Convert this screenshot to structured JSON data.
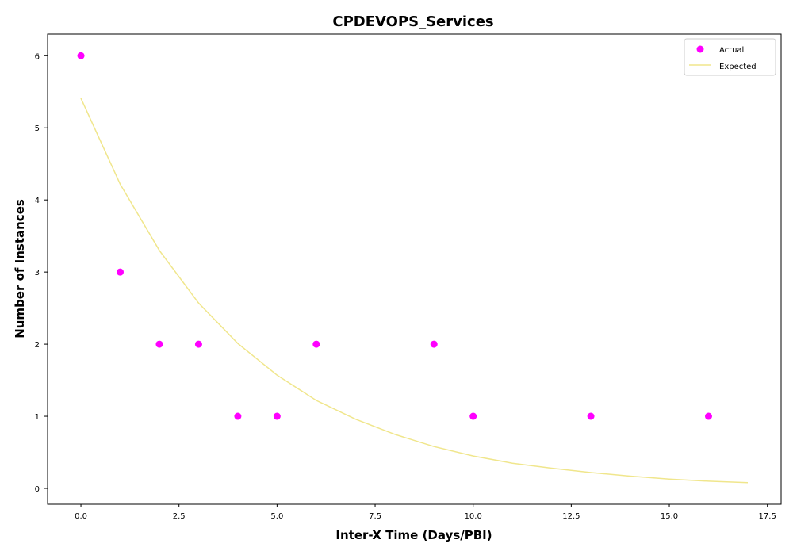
{
  "chart_data": {
    "type": "scatter",
    "title": "CPDEVOPS_Services",
    "xlabel": "Inter-X Time (Days/PBI)",
    "ylabel": "Number of Instances",
    "xlim": [
      -0.85,
      17.85
    ],
    "ylim": [
      -0.22,
      6.3
    ],
    "xticks": [
      0.0,
      2.5,
      5.0,
      7.5,
      10.0,
      12.5,
      15.0,
      17.5
    ],
    "xtick_labels": [
      "0.0",
      "2.5",
      "5.0",
      "7.5",
      "10.0",
      "12.5",
      "15.0",
      "17.5"
    ],
    "yticks": [
      0,
      1,
      2,
      3,
      4,
      5,
      6
    ],
    "ytick_labels": [
      "0",
      "1",
      "2",
      "3",
      "4",
      "5",
      "6"
    ],
    "grid": false,
    "legend_position": "top-right",
    "series": [
      {
        "name": "Actual",
        "kind": "scatter",
        "color": "#ff00ff",
        "x": [
          0,
          1,
          2,
          3,
          4,
          5,
          6,
          9,
          10,
          13,
          16
        ],
        "y": [
          6,
          3,
          2,
          2,
          1,
          1,
          2,
          2,
          1,
          1,
          1
        ]
      },
      {
        "name": "Expected",
        "kind": "line",
        "color": "#f0e68c",
        "x": [
          0,
          1,
          2,
          3,
          4,
          5,
          6,
          7,
          8,
          9,
          10,
          11,
          12,
          13,
          14,
          15,
          16,
          17
        ],
        "y": [
          5.41,
          4.22,
          3.3,
          2.57,
          2.01,
          1.57,
          1.22,
          0.96,
          0.75,
          0.58,
          0.45,
          0.35,
          0.28,
          0.22,
          0.17,
          0.13,
          0.1,
          0.08
        ]
      }
    ]
  }
}
